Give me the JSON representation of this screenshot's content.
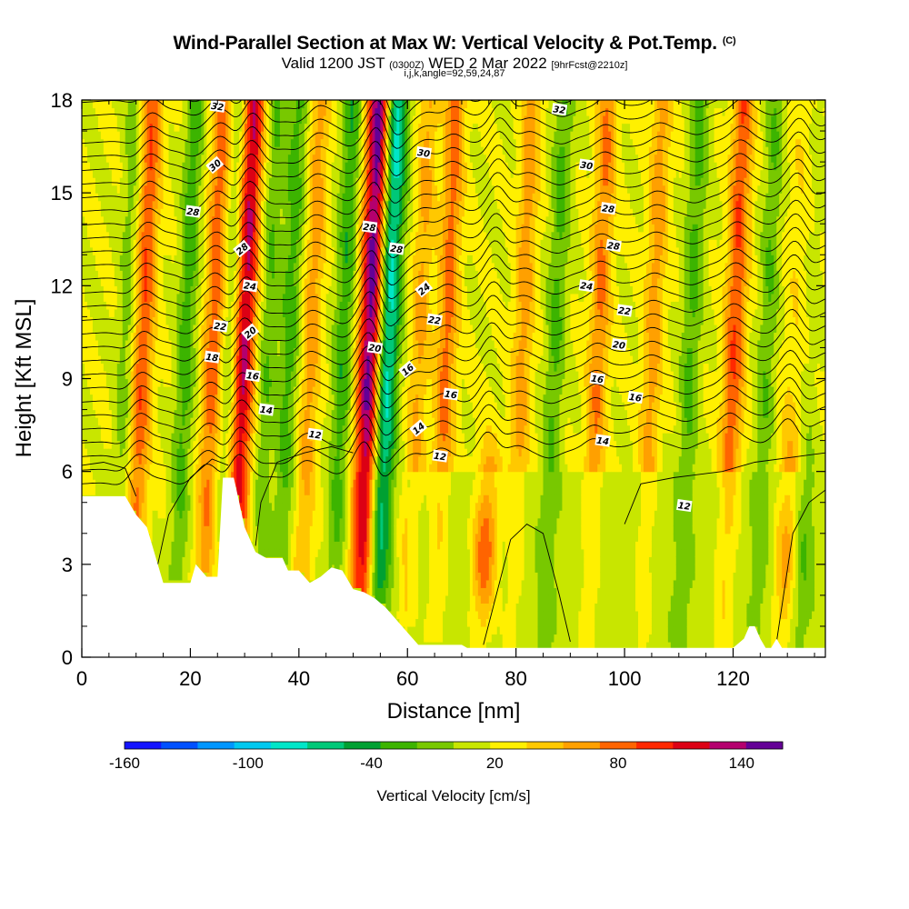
{
  "header": {
    "title": "Wind-Parallel Section at Max W: Vertical Velocity & Pot.Temp.",
    "title_note": "(C)",
    "valid_prefix": "Valid 1200 JST",
    "valid_utc": "(0300Z)",
    "valid_date": "WED 2 Mar 2022",
    "forecast_note": "[9hrFcst@2210z]",
    "indices": "i,j,k,angle=92,59,24,87"
  },
  "chart_data": {
    "type": "heatmap",
    "xlabel": "Distance [nm]",
    "ylabel": "Height [Kft MSL]",
    "xlim": [
      0,
      137
    ],
    "ylim": [
      0,
      18
    ],
    "x_ticks": [
      "0",
      "20",
      "40",
      "60",
      "80",
      "100",
      "120"
    ],
    "y_ticks": [
      "0",
      "3",
      "6",
      "9",
      "12",
      "15",
      "18"
    ],
    "grid": false,
    "colorbar": {
      "title": "Vertical Velocity [cm/s]",
      "tick_labels": [
        "-160",
        "-100",
        "-40",
        "20",
        "80",
        "140"
      ],
      "range": [
        -160,
        160
      ],
      "colors": [
        "#1414ff",
        "#0050ff",
        "#0096ff",
        "#00c8f0",
        "#00e6c8",
        "#00c878",
        "#00a032",
        "#3cb400",
        "#78c800",
        "#c8e600",
        "#fff000",
        "#ffc800",
        "#ffa000",
        "#ff6400",
        "#ff2800",
        "#dc0014",
        "#b4006e",
        "#640096"
      ]
    },
    "updrafts": [
      {
        "x": 11,
        "w": 70
      },
      {
        "x": 24,
        "w": 65
      },
      {
        "x": 29.5,
        "w": 120
      },
      {
        "x": 42,
        "w": 45
      },
      {
        "x": 53,
        "w": 140
      },
      {
        "x": 62,
        "w": 40
      },
      {
        "x": 67,
        "w": 60
      },
      {
        "x": 75.5,
        "w": 130
      },
      {
        "x": 81,
        "w": 45
      },
      {
        "x": 95,
        "w": 55
      },
      {
        "x": 105,
        "w": 45
      },
      {
        "x": 120,
        "w": 70
      },
      {
        "x": 131,
        "w": 100
      }
    ],
    "downdrafts": [
      {
        "x": 8,
        "w": -30
      },
      {
        "x": 19,
        "w": -45
      },
      {
        "x": 27.5,
        "w": -50
      },
      {
        "x": 34,
        "w": -35
      },
      {
        "x": 38,
        "w": -45
      },
      {
        "x": 48,
        "w": -50
      },
      {
        "x": 56,
        "w": -110
      },
      {
        "x": 87,
        "w": -40
      },
      {
        "x": 112,
        "w": -40
      },
      {
        "x": 126,
        "w": -35
      },
      {
        "x": 134,
        "w": -55
      }
    ],
    "terrain_kft": [
      [
        0,
        5.2
      ],
      [
        4,
        5.2
      ],
      [
        8,
        5.2
      ],
      [
        10,
        4.6
      ],
      [
        12,
        4.2
      ],
      [
        14,
        3.0
      ],
      [
        15,
        2.4
      ],
      [
        18,
        2.4
      ],
      [
        20,
        2.4
      ],
      [
        21,
        3.0
      ],
      [
        23,
        2.6
      ],
      [
        25,
        2.6
      ],
      [
        26,
        5.8
      ],
      [
        28,
        5.8
      ],
      [
        29,
        5.0
      ],
      [
        30,
        4.2
      ],
      [
        32,
        3.4
      ],
      [
        34,
        3.2
      ],
      [
        37,
        3.2
      ],
      [
        38,
        2.8
      ],
      [
        40,
        2.8
      ],
      [
        42,
        2.4
      ],
      [
        44,
        2.6
      ],
      [
        46,
        2.9
      ],
      [
        48,
        2.8
      ],
      [
        50,
        2.2
      ],
      [
        52,
        2.1
      ],
      [
        54,
        1.9
      ],
      [
        56,
        1.6
      ],
      [
        58,
        1.2
      ],
      [
        60,
        0.8
      ],
      [
        62,
        0.4
      ],
      [
        70,
        0.4
      ],
      [
        71,
        0.3
      ],
      [
        120,
        0.3
      ],
      [
        122,
        0.6
      ],
      [
        123,
        1.0
      ],
      [
        124,
        1.0
      ],
      [
        125,
        0.6
      ],
      [
        126,
        0.3
      ],
      [
        127,
        0.3
      ],
      [
        128,
        0.6
      ],
      [
        129,
        0.3
      ],
      [
        137,
        0.3
      ]
    ],
    "theta_labels": [
      {
        "text": "32",
        "x": 25,
        "y": 17.8
      },
      {
        "text": "32",
        "x": 88,
        "y": 17.7
      },
      {
        "text": "30",
        "x": 24.5,
        "y": 15.9
      },
      {
        "text": "30",
        "x": 63,
        "y": 16.3
      },
      {
        "text": "30",
        "x": 93,
        "y": 15.9
      },
      {
        "text": "28",
        "x": 20.5,
        "y": 14.4
      },
      {
        "text": "28",
        "x": 97,
        "y": 14.5
      },
      {
        "text": "28",
        "x": 29.5,
        "y": 13.2
      },
      {
        "text": "28",
        "x": 53,
        "y": 13.9
      },
      {
        "text": "28",
        "x": 58,
        "y": 13.2
      },
      {
        "text": "28",
        "x": 98,
        "y": 13.3
      },
      {
        "text": "24",
        "x": 31,
        "y": 12.0
      },
      {
        "text": "24",
        "x": 63,
        "y": 11.9
      },
      {
        "text": "24",
        "x": 93,
        "y": 12.0
      },
      {
        "text": "22",
        "x": 25.5,
        "y": 10.7
      },
      {
        "text": "22",
        "x": 65,
        "y": 10.9
      },
      {
        "text": "22",
        "x": 100,
        "y": 11.2
      },
      {
        "text": "20",
        "x": 31,
        "y": 10.5
      },
      {
        "text": "20",
        "x": 54,
        "y": 10.0
      },
      {
        "text": "20",
        "x": 99,
        "y": 10.1
      },
      {
        "text": "18",
        "x": 24,
        "y": 9.7
      },
      {
        "text": "16",
        "x": 31.5,
        "y": 9.1
      },
      {
        "text": "16",
        "x": 60,
        "y": 9.3
      },
      {
        "text": "16",
        "x": 68,
        "y": 8.5
      },
      {
        "text": "16",
        "x": 95,
        "y": 9.0
      },
      {
        "text": "16",
        "x": 102,
        "y": 8.4
      },
      {
        "text": "14",
        "x": 34,
        "y": 8.0
      },
      {
        "text": "14",
        "x": 62,
        "y": 7.4
      },
      {
        "text": "14",
        "x": 96,
        "y": 7.0
      },
      {
        "text": "12",
        "x": 43,
        "y": 7.2
      },
      {
        "text": "12",
        "x": 66,
        "y": 6.5
      },
      {
        "text": "12",
        "x": 111,
        "y": 4.9
      }
    ]
  }
}
